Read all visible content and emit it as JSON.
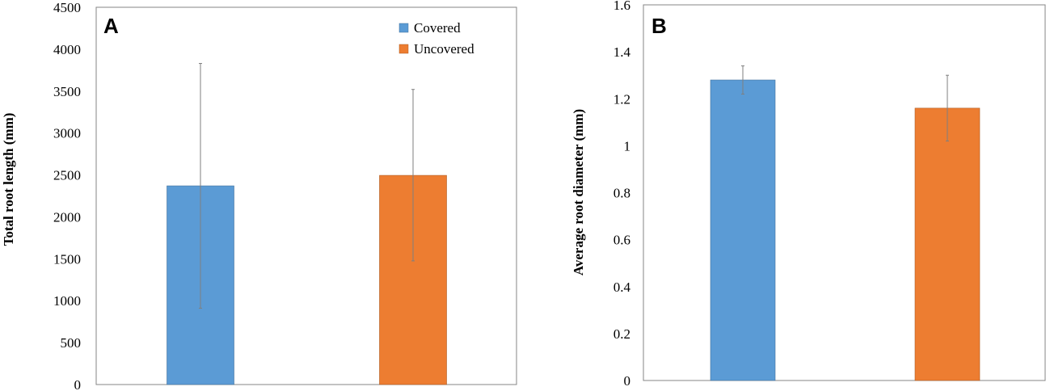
{
  "colors": {
    "covered": "#5b9bd5",
    "uncovered": "#ed7d31",
    "error": "#7f7f7f",
    "axis": "#868686"
  },
  "legend": {
    "placement": "top-right",
    "items": [
      "Covered",
      "Uncovered"
    ]
  },
  "chart_data": [
    {
      "type": "bar",
      "panel_label": "A",
      "categories": [
        "Covered",
        "Uncovered"
      ],
      "values": [
        2370,
        2495
      ],
      "error_low": [
        910,
        1475
      ],
      "error_high": [
        3830,
        3520
      ],
      "ylabel": "Total root length (mm)",
      "xlabel": "",
      "ylim": [
        0,
        4500
      ],
      "yticks": [
        "0",
        "500",
        "1000",
        "1500",
        "2000",
        "2500",
        "3000",
        "3500",
        "4000",
        "4500"
      ],
      "grid": false
    },
    {
      "type": "bar",
      "panel_label": "B",
      "categories": [
        "Covered",
        "Uncovered"
      ],
      "values": [
        1.28,
        1.16
      ],
      "error_low": [
        1.22,
        1.02
      ],
      "error_high": [
        1.34,
        1.3
      ],
      "ylabel": "Average root diameter (mm)",
      "xlabel": "",
      "ylim": [
        0,
        1.6
      ],
      "yticks": [
        "0",
        "0.2",
        "0.4",
        "0.6",
        "0.8",
        "1",
        "1.2",
        "1.4",
        "1.6"
      ],
      "grid": false
    }
  ]
}
